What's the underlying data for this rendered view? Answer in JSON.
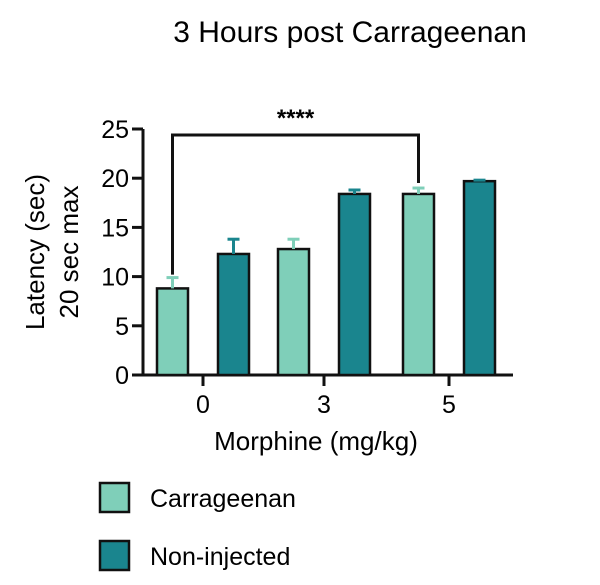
{
  "chart_data": {
    "type": "bar",
    "title": "3 Hours post Carrageenan",
    "xlabel": "Morphine (mg/kg)",
    "ylabel_line1": "Latency (sec)",
    "ylabel_line2": "20 sec max",
    "categories": [
      "0",
      "3",
      "5"
    ],
    "ylim": [
      0,
      25
    ],
    "yticks": [
      "0",
      "5",
      "10",
      "15",
      "20",
      "25"
    ],
    "grid": false,
    "legend_position": "bottom",
    "series": [
      {
        "name": "Carrageenan",
        "color": "#7fcfb9",
        "values": [
          8.8,
          12.8,
          18.4
        ],
        "errors": [
          1.1,
          1.0,
          0.6
        ]
      },
      {
        "name": "Non-injected",
        "color": "#1a858e",
        "values": [
          12.3,
          18.4,
          19.7
        ],
        "errors": [
          1.5,
          0.4,
          0.1
        ]
      }
    ],
    "significance": {
      "label": "****",
      "from_category": "0",
      "to_category": "5",
      "series": "Carrageenan"
    }
  }
}
